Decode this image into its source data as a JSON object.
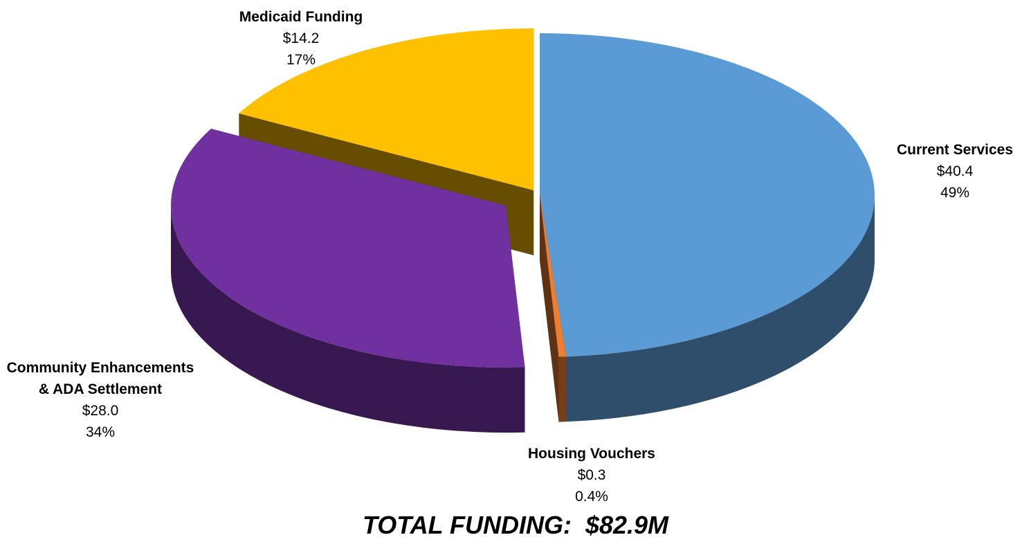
{
  "chart_data": {
    "type": "pie",
    "title": "TOTAL FUNDING:  $82.9M",
    "categories": [
      "Current Services",
      "Housing Vouchers",
      "Community Enhancements & ADA Settlement",
      "Medicaid Funding"
    ],
    "values": [
      40.4,
      0.3,
      28.0,
      14.2
    ],
    "value_labels": [
      "$40.4",
      "$0.3",
      "$28.0",
      "$14.2"
    ],
    "percent_labels": [
      "49%",
      "0.4%",
      "34%",
      "17%"
    ],
    "colors": [
      "#5b9bd5",
      "#ed7d31",
      "#7030a0",
      "#ffc000"
    ]
  }
}
